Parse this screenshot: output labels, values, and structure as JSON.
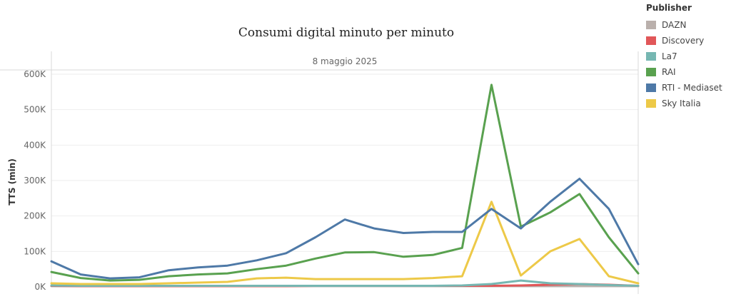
{
  "chart_data": {
    "type": "line",
    "title": "Consumi digital minuto per minuto",
    "header": "8 maggio 2025",
    "ylabel": "TTS (min)",
    "ylim": [
      0,
      600000
    ],
    "yticks": [
      0,
      100000,
      200000,
      300000,
      400000,
      500000,
      600000
    ],
    "ytick_labels": [
      "0K",
      "100K",
      "200K",
      "300K",
      "400K",
      "500K",
      "600K"
    ],
    "grid": true,
    "legend_title": "Publisher",
    "legend_position": "right",
    "series": [
      {
        "name": "DAZN",
        "color": "#bab0ac",
        "values": [
          2000,
          2000,
          2000,
          2000,
          2000,
          2000,
          2000,
          2000,
          2000,
          2000,
          2000,
          2000,
          2000,
          2000,
          2000,
          2000,
          2000,
          2000,
          2000,
          2000,
          2000
        ]
      },
      {
        "name": "Discovery",
        "color": "#e15759",
        "values": [
          3000,
          2000,
          2000,
          2000,
          2000,
          2000,
          2000,
          2000,
          2000,
          3000,
          3000,
          3000,
          3000,
          3000,
          3000,
          3000,
          4000,
          6000,
          8000,
          6000,
          3000
        ]
      },
      {
        "name": "La7",
        "color": "#76b7b2",
        "values": [
          4000,
          3000,
          3000,
          3000,
          3000,
          3000,
          3000,
          3000,
          3000,
          3000,
          3000,
          3000,
          3000,
          3000,
          4000,
          8000,
          18000,
          10000,
          8000,
          5000,
          3000
        ]
      },
      {
        "name": "RAI",
        "color": "#59a14f",
        "values": [
          42000,
          25000,
          18000,
          20000,
          30000,
          35000,
          38000,
          50000,
          60000,
          80000,
          97000,
          98000,
          85000,
          90000,
          110000,
          570000,
          170000,
          210000,
          262000,
          140000,
          38000
        ]
      },
      {
        "name": "RTI - Mediaset",
        "color": "#4e79a7",
        "values": [
          72000,
          35000,
          24000,
          27000,
          47000,
          55000,
          60000,
          75000,
          95000,
          140000,
          190000,
          165000,
          152000,
          155000,
          155000,
          220000,
          165000,
          240000,
          305000,
          220000,
          64000
        ]
      },
      {
        "name": "Sky Italia",
        "color": "#edc948",
        "values": [
          10000,
          8000,
          8000,
          8000,
          10000,
          12000,
          14000,
          24000,
          26000,
          22000,
          22000,
          22000,
          22000,
          25000,
          30000,
          240000,
          32000,
          100000,
          135000,
          30000,
          10000
        ]
      }
    ]
  }
}
